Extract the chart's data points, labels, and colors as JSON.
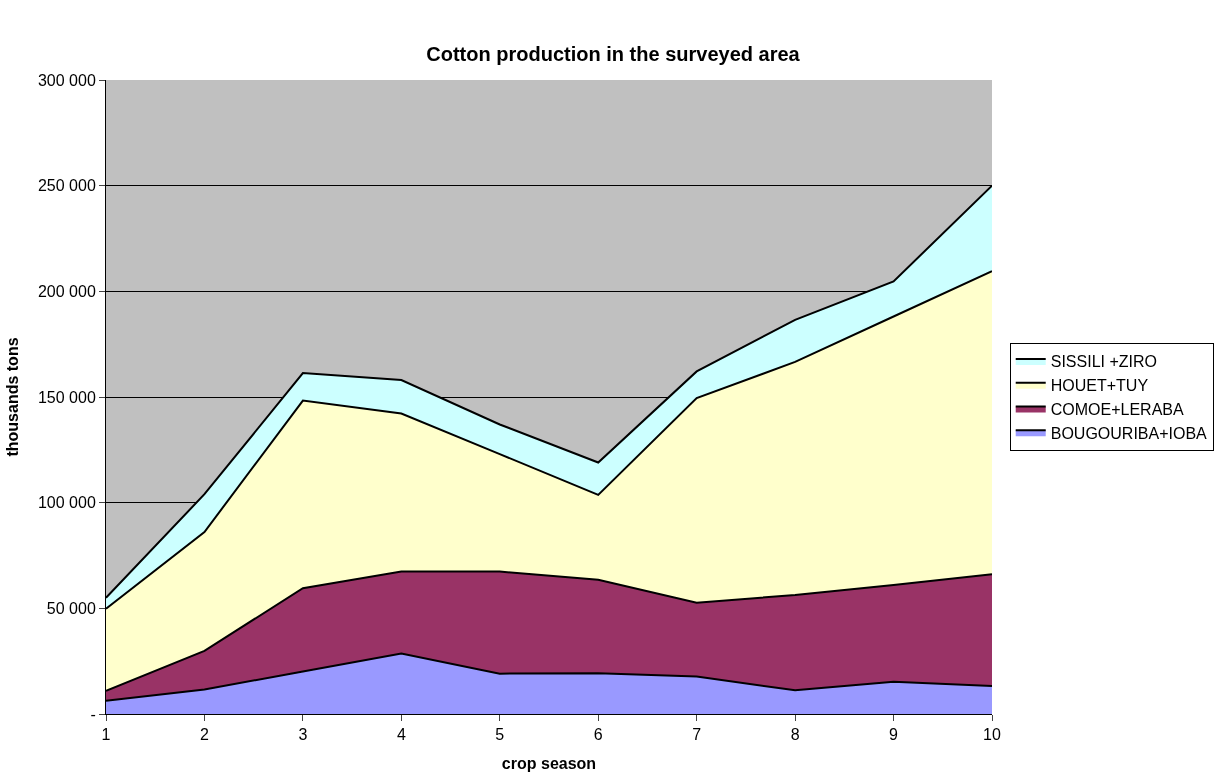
{
  "chart_data": {
    "type": "area",
    "stacked": true,
    "title": "Cotton production in the surveyed area",
    "xlabel": "crop season",
    "ylabel": "thousands tons",
    "x": [
      1,
      2,
      3,
      4,
      5,
      6,
      7,
      8,
      9,
      10
    ],
    "xlim": [
      1,
      10
    ],
    "xticks": [
      1,
      2,
      3,
      4,
      5,
      6,
      7,
      8,
      9,
      10
    ],
    "ylim": [
      0,
      300000
    ],
    "yticks": [
      {
        "value": 0,
        "label": "-"
      },
      {
        "value": 50000,
        "label": "50 000"
      },
      {
        "value": 100000,
        "label": "100 000"
      },
      {
        "value": 150000,
        "label": "150 000"
      },
      {
        "value": 200000,
        "label": "200 000"
      },
      {
        "value": 250000,
        "label": "250 000"
      },
      {
        "value": 300000,
        "label": "300 000"
      }
    ],
    "grid": "y",
    "legend": "right",
    "series": [
      {
        "name": "BOUGOURIBA+IOBA",
        "color": "#9999ff",
        "values": [
          6300,
          11600,
          20100,
          28600,
          19100,
          19300,
          17700,
          11200,
          15300,
          13200
        ]
      },
      {
        "name": "COMOE+LERABA",
        "color": "#993366",
        "values": [
          4700,
          18300,
          39400,
          38800,
          48300,
          44200,
          35000,
          45100,
          45700,
          52900
        ]
      },
      {
        "name": "HOUET+TUY",
        "color": "#ffffcc",
        "values": [
          38800,
          56200,
          88800,
          74800,
          55600,
          40200,
          96800,
          110300,
          127100,
          143400
        ]
      },
      {
        "name": "SISSILI +ZIRO",
        "color": "#ccffff",
        "values": [
          5200,
          17900,
          13000,
          15800,
          14000,
          15300,
          12600,
          19900,
          16600,
          40500
        ]
      }
    ]
  }
}
